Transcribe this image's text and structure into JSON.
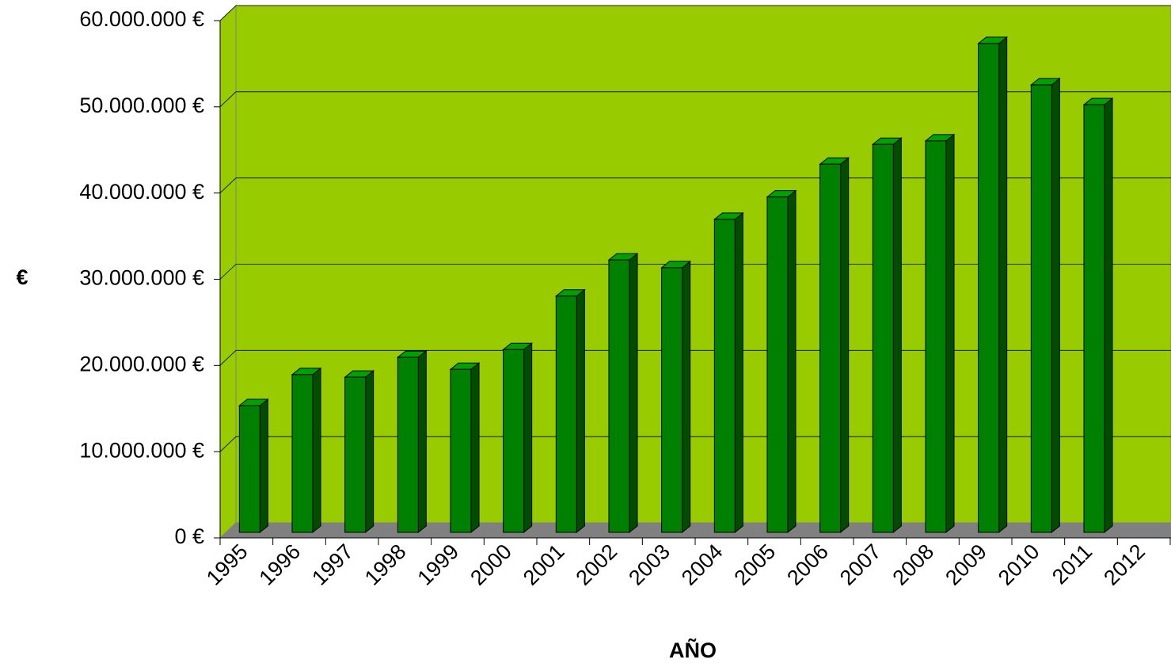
{
  "chart_data": {
    "type": "bar",
    "y_label": "€",
    "x_label": "AÑO",
    "categories": [
      "1995",
      "1996",
      "1997",
      "1998",
      "1999",
      "2000",
      "2001",
      "2002",
      "2003",
      "2004",
      "2005",
      "2006",
      "2007",
      "2008",
      "2009",
      "2010",
      "2011",
      "2012"
    ],
    "values": [
      14700000,
      18300000,
      18000000,
      20300000,
      18900000,
      21200000,
      27400000,
      31600000,
      30700000,
      36300000,
      38900000,
      42700000,
      45000000,
      45400000,
      56700000,
      51900000,
      49600000,
      null
    ],
    "color": "#008000",
    "ylim": [
      0,
      60000000
    ],
    "yticks": [
      {
        "value": 0,
        "label": "0 €"
      },
      {
        "value": 10000000,
        "label": "10.000.000 €"
      },
      {
        "value": 20000000,
        "label": "20.000.000 €"
      },
      {
        "value": 30000000,
        "label": "30.000.000 €"
      },
      {
        "value": 40000000,
        "label": "40.000.000 €"
      },
      {
        "value": 50000000,
        "label": "50.000.000 €"
      },
      {
        "value": 60000000,
        "label": "60.000.000 €"
      }
    ],
    "grid": true
  }
}
